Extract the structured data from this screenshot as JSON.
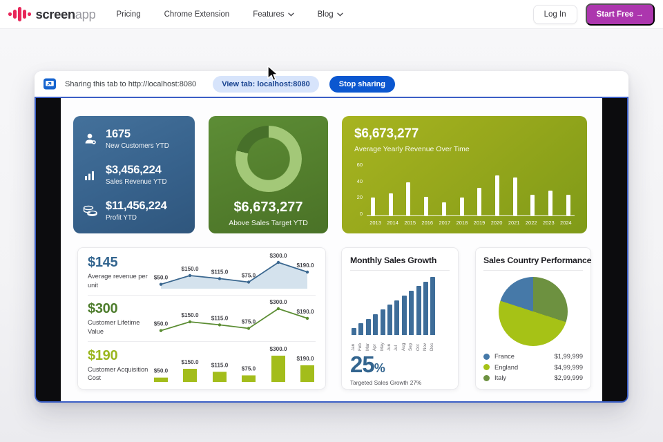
{
  "nav": {
    "brand": {
      "primary": "screen",
      "secondary": "app"
    },
    "items": [
      {
        "label": "Pricing",
        "has_dropdown": false
      },
      {
        "label": "Chrome Extension",
        "has_dropdown": false
      },
      {
        "label": "Features",
        "has_dropdown": true
      },
      {
        "label": "Blog",
        "has_dropdown": true
      }
    ],
    "login_label": "Log In",
    "cta_label": "Start Free →"
  },
  "share": {
    "message": "Sharing this tab to http://localhost:8080",
    "view_tab_label": "View tab: localhost:8080",
    "stop_label": "Stop sharing"
  },
  "colors": {
    "brand_pink": "#e8275a",
    "cta_purple": "#ac36ae",
    "chrome_blue": "#0b57d0",
    "tab_border_blue": "#3b5ec5",
    "steel_blue": "#3e6d99",
    "olive_green": "#a3bd1b",
    "leaf_green": "#5b8d33"
  },
  "dashboard": {
    "kpi": {
      "items": [
        {
          "icon": "person-icon",
          "value": "1675",
          "label": "New Customers YTD"
        },
        {
          "icon": "bar-chart-icon",
          "value": "$3,456,224",
          "label": "Sales Revenue YTD"
        },
        {
          "icon": "coins-icon",
          "value": "$11,456,224",
          "label": "Profit YTD"
        }
      ]
    },
    "monthly": {
      "big_value": "25",
      "big_unit": "%"
    },
    "country": {
      "legend": [
        {
          "name": "France",
          "value": "$1,99,999",
          "color": "#4679a8"
        },
        {
          "name": "England",
          "value": "$4,99,999",
          "color": "#a6c216"
        },
        {
          "name": "Italy",
          "value": "$2,99,999",
          "color": "#6d9140"
        }
      ]
    }
  },
  "chart_data": [
    {
      "id": "yearly_revenue",
      "type": "bar",
      "title": "$6,673,277",
      "subtitle": "Average Yearly Revenue Over Time",
      "categories": [
        "2013",
        "2014",
        "2015",
        "2016",
        "2017",
        "2018",
        "2019",
        "2020",
        "2021",
        "2022",
        "2023",
        "2024"
      ],
      "values": [
        20,
        25,
        37,
        21,
        15,
        20,
        31,
        45,
        42,
        23,
        28,
        23
      ],
      "ylim": [
        0,
        60
      ],
      "yticks": [
        60,
        40,
        20,
        0
      ],
      "bar_color": "#ffffff",
      "grid": false
    },
    {
      "id": "sales_target_donut",
      "type": "pie",
      "subtype": "donut",
      "value_label": "$6,673,277",
      "caption": "Above Sales Target YTD",
      "segments": [
        {
          "name": "base",
          "pct": 79,
          "color": "#a3c878"
        },
        {
          "name": "above-target",
          "pct": 21,
          "color": "#47702a"
        }
      ]
    },
    {
      "id": "avg_revenue_per_unit",
      "type": "area",
      "metric_value": "$145",
      "metric_label": "Average revenue per unit",
      "values": [
        50,
        150,
        115,
        75,
        300,
        190
      ],
      "point_labels": [
        "$50.0",
        "$150.0",
        "$115.0",
        "$75.0",
        "$300.0",
        "$190.0"
      ],
      "line_color": "#3a678f",
      "fill_color": "#c9dbe9"
    },
    {
      "id": "customer_lifetime_value",
      "type": "line",
      "metric_value": "$300",
      "metric_label": "Customer Lifetime Value",
      "values": [
        50,
        150,
        115,
        75,
        300,
        190
      ],
      "point_labels": [
        "$50.0",
        "$150.0",
        "$115.0",
        "$75.0",
        "$300.0",
        "$190.0"
      ],
      "line_color": "#5b8d33"
    },
    {
      "id": "customer_acquisition_cost",
      "type": "bar",
      "metric_value": "$190",
      "metric_label": "Customer Acquisition Cost",
      "values": [
        50,
        150,
        115,
        75,
        300,
        190
      ],
      "point_labels": [
        "$50.0",
        "$150.0",
        "$115.0",
        "$75.0",
        "$300.0",
        "$190.0"
      ],
      "bar_color": "#a3bd1b"
    },
    {
      "id": "monthly_sales_growth",
      "type": "bar",
      "title": "Monthly Sales Growth",
      "categories": [
        "Jan",
        "Feb",
        "Mar",
        "Apr",
        "May",
        "Jun",
        "Jul",
        "Aug",
        "Sep",
        "Oct",
        "Nov",
        "Dec"
      ],
      "values": [
        3,
        5,
        7,
        9,
        11,
        13,
        15,
        17,
        19,
        21,
        23,
        25
      ],
      "ylim": [
        0,
        25
      ],
      "bar_color": "#3e6d99",
      "annotation": "25%",
      "caption": "Targeted Sales Growth 27%"
    },
    {
      "id": "sales_country_pie",
      "type": "pie",
      "title": "Sales Country Performance",
      "slices": [
        {
          "name": "Italy",
          "pct": 30,
          "color": "#6d9140",
          "value": "$2,99,999"
        },
        {
          "name": "England",
          "pct": 50,
          "color": "#a6c216",
          "value": "$4,99,999"
        },
        {
          "name": "France",
          "pct": 20,
          "color": "#4679a8",
          "value": "$1,99,999"
        }
      ],
      "legend_position": "bottom"
    }
  ]
}
